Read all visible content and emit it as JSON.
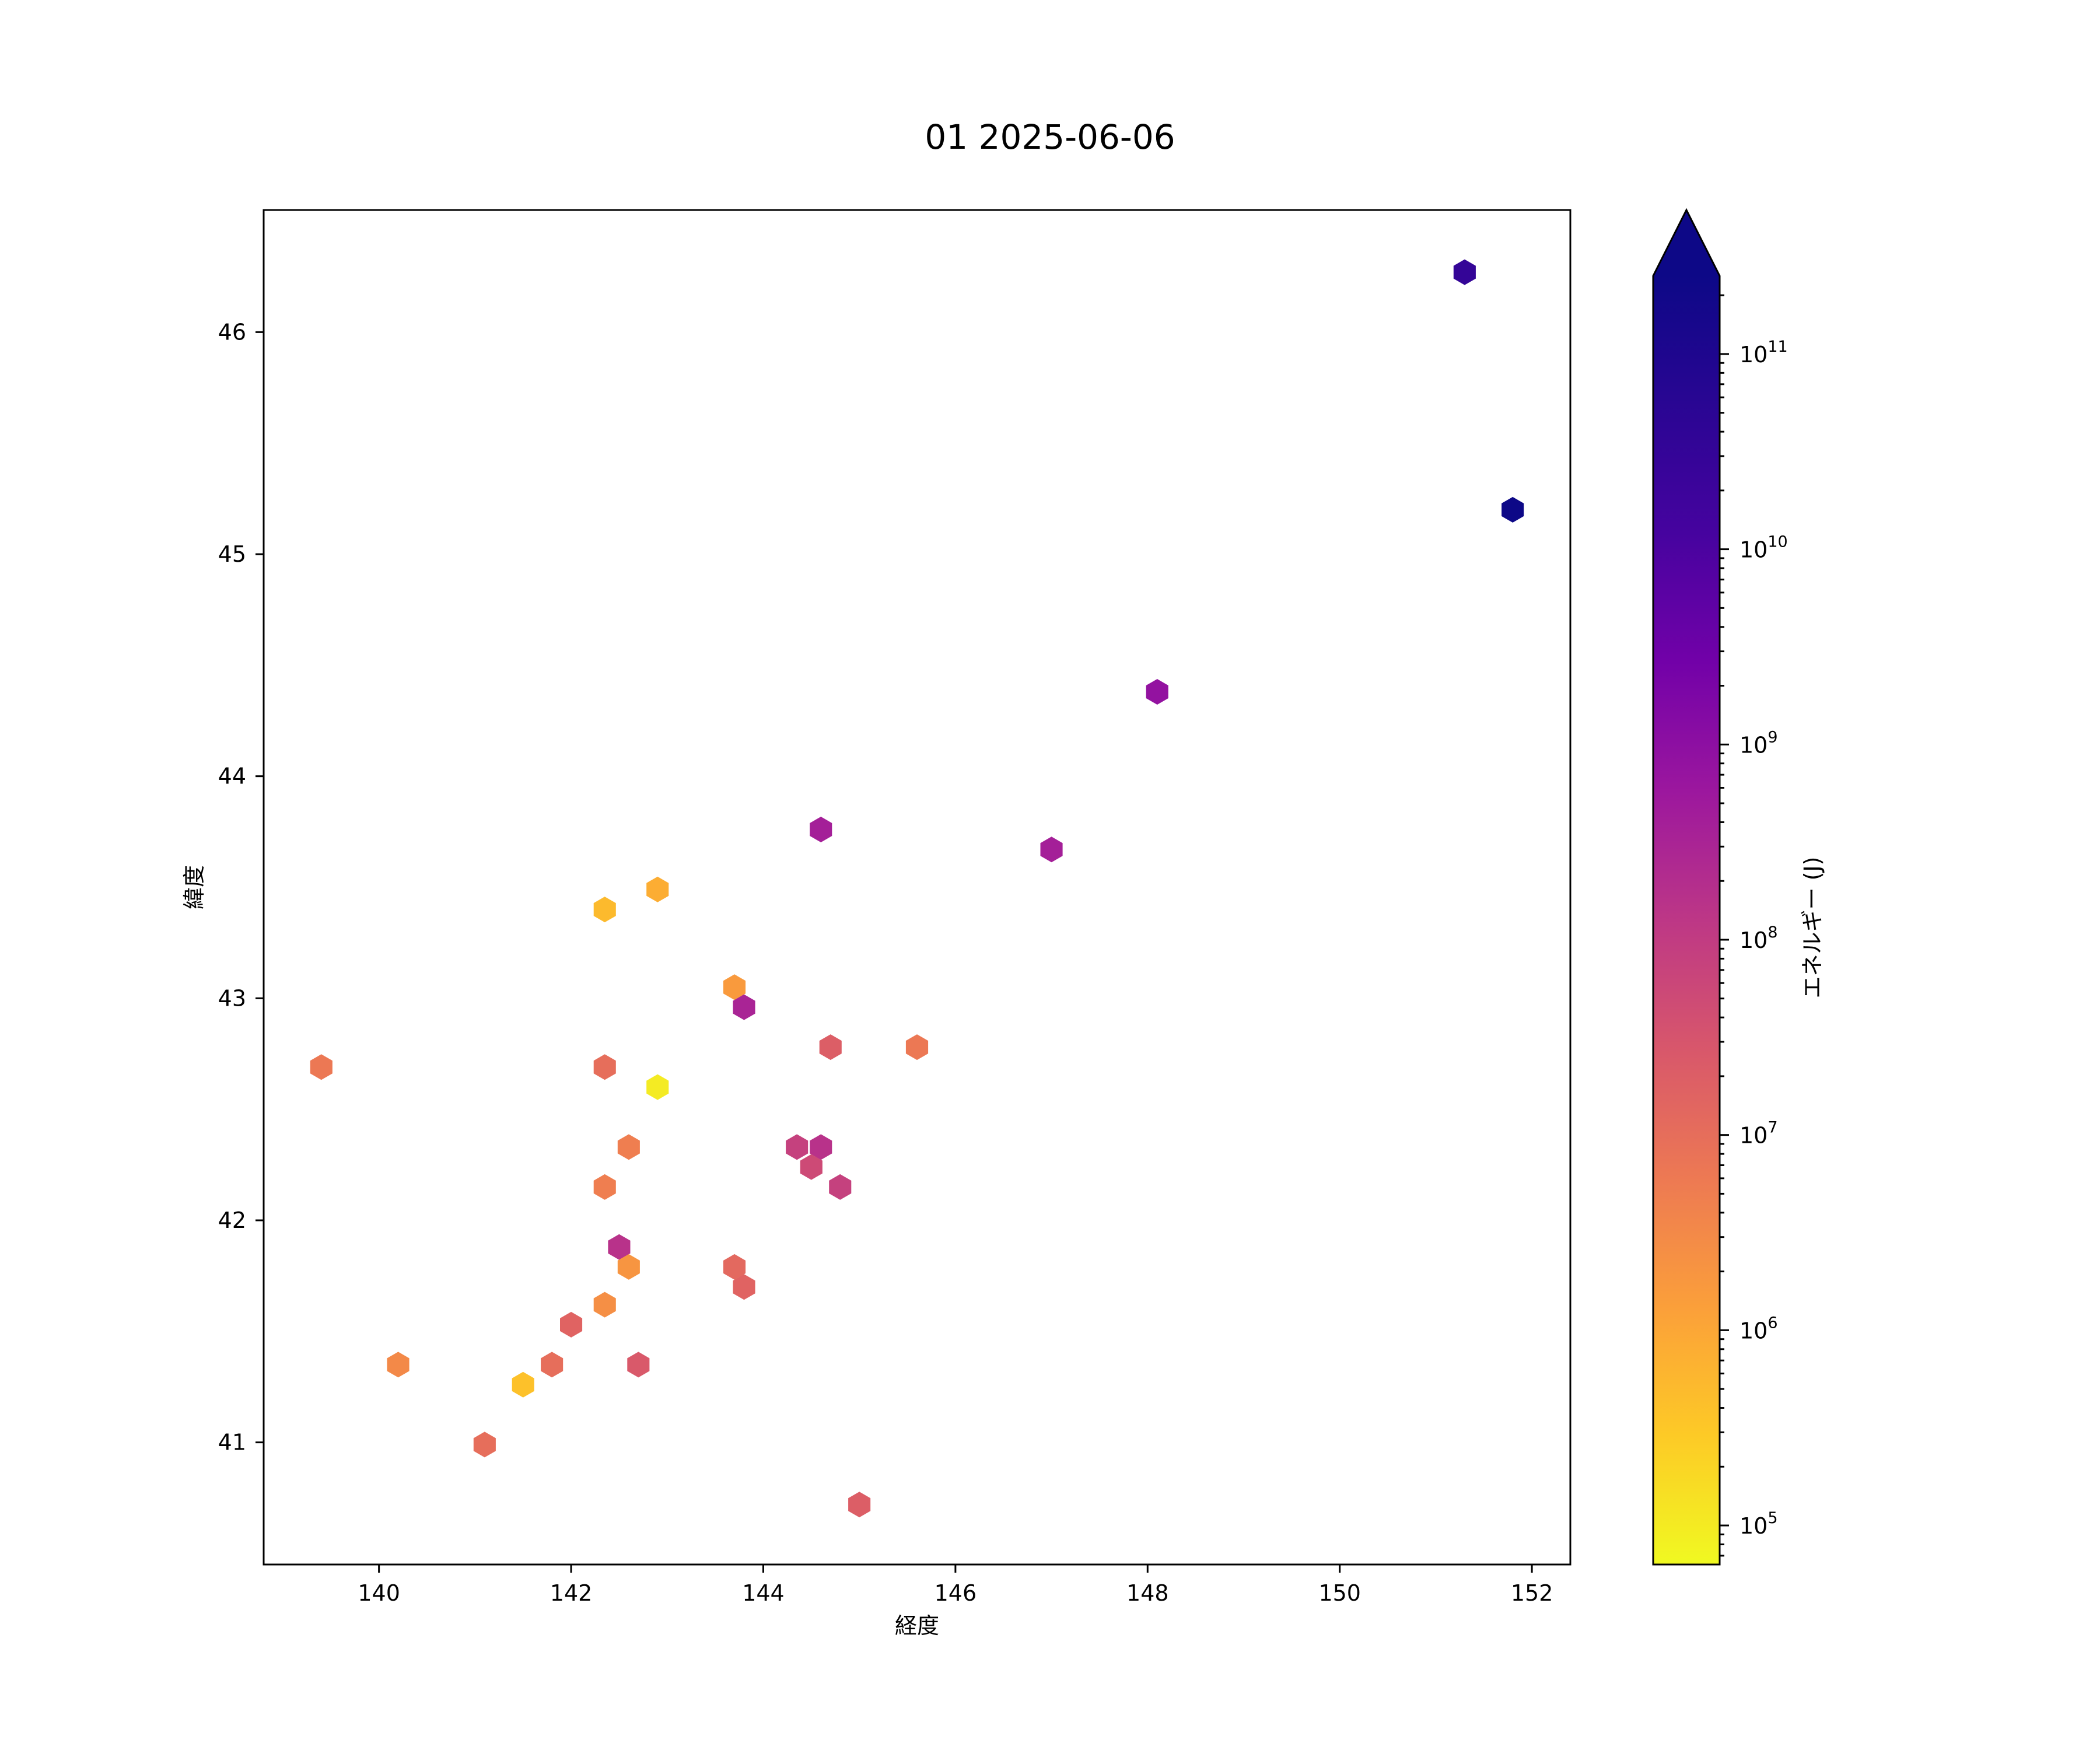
{
  "chart_data": {
    "type": "hexbin",
    "title": "01 2025-06-06",
    "xlabel": "経度",
    "ylabel": "緯度",
    "xlim": [
      138.8,
      152.4
    ],
    "ylim": [
      40.45,
      46.55
    ],
    "xticks": [
      140,
      142,
      144,
      146,
      148,
      150,
      152
    ],
    "yticks": [
      41,
      42,
      43,
      44,
      45,
      46
    ],
    "colorbar": {
      "label": "エネルギー (J)",
      "scale": "log",
      "colormap": "plasma_r",
      "extend": "max",
      "range_log10": [
        4.8,
        11.4
      ],
      "ticks": [
        {
          "exp": 5,
          "base": "10",
          "sup": "5"
        },
        {
          "exp": 6,
          "base": "10",
          "sup": "6"
        },
        {
          "exp": 7,
          "base": "10",
          "sup": "7"
        },
        {
          "exp": 8,
          "base": "10",
          "sup": "8"
        },
        {
          "exp": 9,
          "base": "10",
          "sup": "9"
        },
        {
          "exp": 10,
          "base": "10",
          "sup": "10"
        },
        {
          "exp": 11,
          "base": "10",
          "sup": "11"
        }
      ],
      "over_color": "#0d0887"
    },
    "points": [
      {
        "lon": 151.3,
        "lat": 46.27,
        "log_energy": 10.5
      },
      {
        "lon": 151.8,
        "lat": 45.2,
        "log_energy": 11.5
      },
      {
        "lon": 148.1,
        "lat": 44.38,
        "log_energy": 8.9
      },
      {
        "lon": 144.6,
        "lat": 43.76,
        "log_energy": 8.6
      },
      {
        "lon": 147.0,
        "lat": 43.67,
        "log_energy": 8.6
      },
      {
        "lon": 142.9,
        "lat": 43.49,
        "log_energy": 5.9
      },
      {
        "lon": 142.35,
        "lat": 43.4,
        "log_energy": 5.7
      },
      {
        "lon": 143.7,
        "lat": 43.05,
        "log_energy": 6.2
      },
      {
        "lon": 143.8,
        "lat": 42.96,
        "log_energy": 8.5
      },
      {
        "lon": 144.7,
        "lat": 42.78,
        "log_energy": 7.3
      },
      {
        "lon": 145.6,
        "lat": 42.78,
        "log_energy": 6.8
      },
      {
        "lon": 139.4,
        "lat": 42.69,
        "log_energy": 6.8
      },
      {
        "lon": 142.35,
        "lat": 42.69,
        "log_energy": 7.0
      },
      {
        "lon": 142.9,
        "lat": 42.6,
        "log_energy": 5.0
      },
      {
        "lon": 144.35,
        "lat": 42.33,
        "log_energy": 7.9
      },
      {
        "lon": 144.6,
        "lat": 42.33,
        "log_energy": 8.2
      },
      {
        "lon": 142.6,
        "lat": 42.33,
        "log_energy": 6.7
      },
      {
        "lon": 144.5,
        "lat": 42.24,
        "log_energy": 7.7
      },
      {
        "lon": 142.35,
        "lat": 42.15,
        "log_energy": 6.7
      },
      {
        "lon": 144.8,
        "lat": 42.15,
        "log_energy": 7.9
      },
      {
        "lon": 142.5,
        "lat": 41.88,
        "log_energy": 8.2
      },
      {
        "lon": 142.6,
        "lat": 41.79,
        "log_energy": 6.3
      },
      {
        "lon": 143.7,
        "lat": 41.79,
        "log_energy": 7.1
      },
      {
        "lon": 143.8,
        "lat": 41.7,
        "log_energy": 7.2
      },
      {
        "lon": 142.35,
        "lat": 41.62,
        "log_energy": 6.4
      },
      {
        "lon": 142.0,
        "lat": 41.53,
        "log_energy": 7.2
      },
      {
        "lon": 140.2,
        "lat": 41.35,
        "log_energy": 6.5
      },
      {
        "lon": 141.8,
        "lat": 41.35,
        "log_energy": 7.0
      },
      {
        "lon": 142.7,
        "lat": 41.35,
        "log_energy": 7.4
      },
      {
        "lon": 141.5,
        "lat": 41.26,
        "log_energy": 5.6
      },
      {
        "lon": 141.1,
        "lat": 40.99,
        "log_energy": 7.0
      },
      {
        "lon": 145.0,
        "lat": 40.72,
        "log_energy": 7.3
      }
    ]
  }
}
